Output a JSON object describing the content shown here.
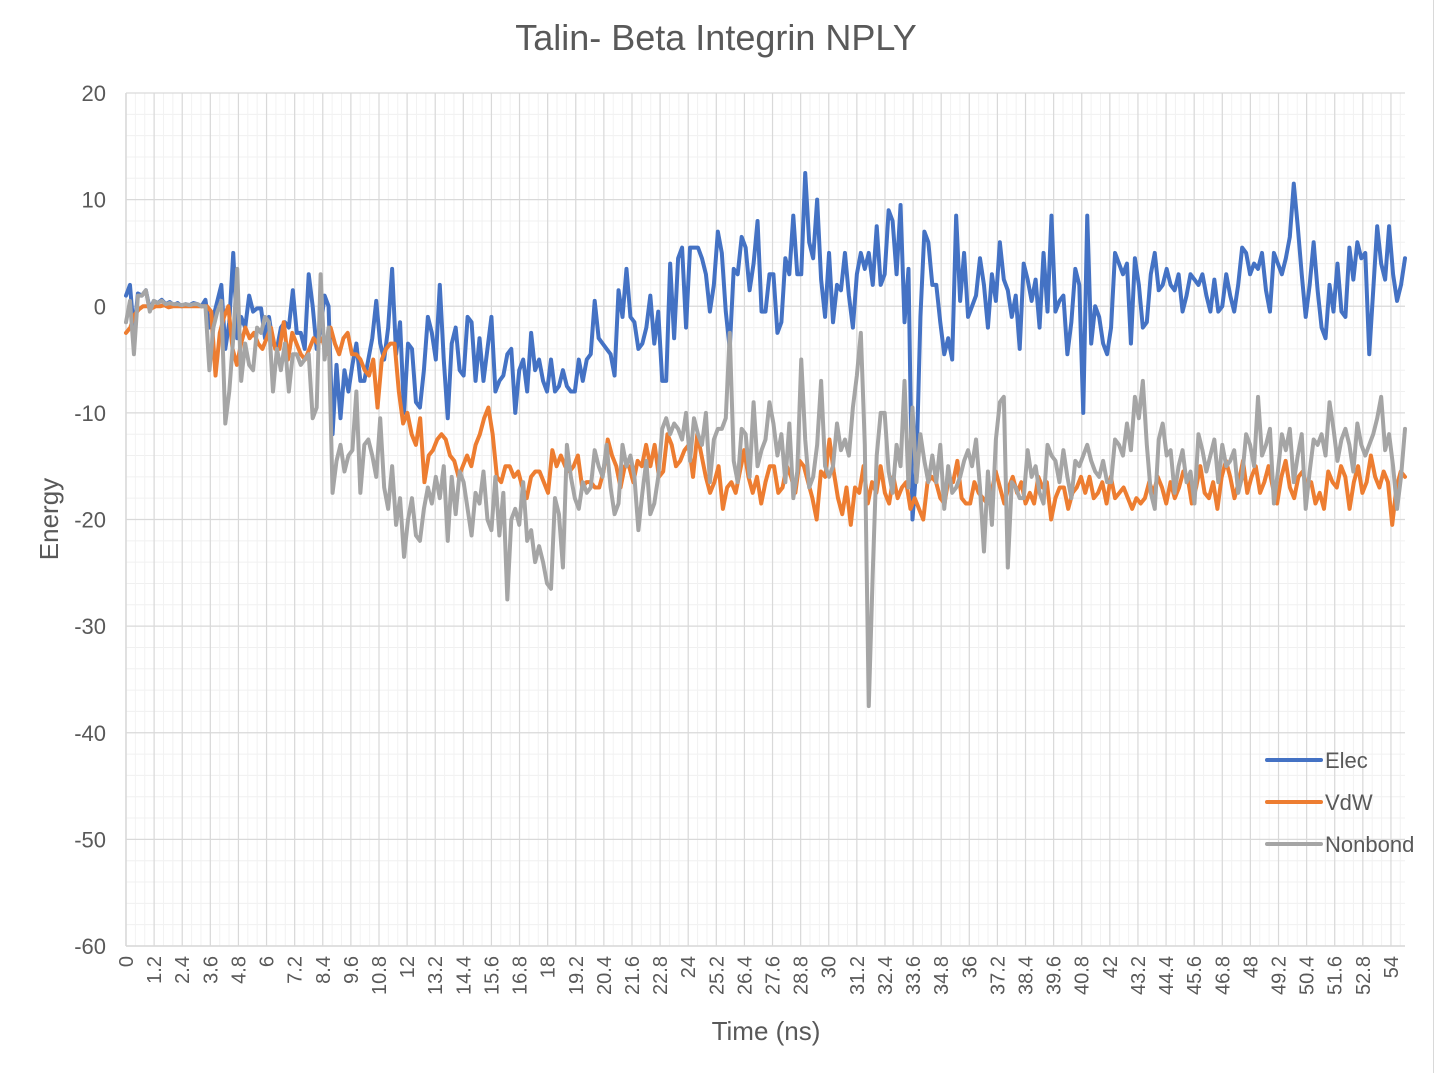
{
  "chart_data": {
    "type": "line",
    "title": "Talin- Beta Integrin NPLY",
    "xlabel": "Time (ns)",
    "ylabel": "Energy",
    "ylim": [
      -60,
      20
    ],
    "yticks": [
      20,
      10,
      0,
      -10,
      -20,
      -30,
      -40,
      -50,
      -60
    ],
    "xlim": [
      0,
      54.6
    ],
    "xticks": [
      "0",
      "1.2",
      "2.4",
      "3.6",
      "4.8",
      "6",
      "7.2",
      "8.4",
      "9.6",
      "10.8",
      "12",
      "13.2",
      "14.4",
      "15.6",
      "16.8",
      "18",
      "19.2",
      "20.4",
      "21.6",
      "22.8",
      "24",
      "25.2",
      "26.4",
      "27.6",
      "28.8",
      "30",
      "31.2",
      "32.4",
      "33.6",
      "34.8",
      "36",
      "37.2",
      "38.4",
      "39.6",
      "40.8",
      "42",
      "43.2",
      "44.4",
      "45.6",
      "46.8",
      "48",
      "49.2",
      "50.4",
      "51.6",
      "52.8",
      "54"
    ],
    "grid": true,
    "legend_position": "bottom-right",
    "series": [
      {
        "name": "Elec",
        "color": "#4472c4",
        "values": [
          1.0,
          2.0,
          -2.5,
          1.2,
          1.0,
          1.5,
          -0.3,
          0.5,
          0.3,
          0.6,
          0.2,
          0.4,
          0.1,
          0.3,
          0.0,
          0.2,
          0.1,
          0.3,
          0.2,
          0.0,
          0.6,
          -2.0,
          -1.0,
          0.5,
          2.0,
          -4.0,
          -1.5,
          5.0,
          -3.0,
          -1.0,
          -2.0,
          1.0,
          -0.5,
          -0.2,
          -0.2,
          -3.0,
          -1.0,
          -3.5,
          -4.0,
          -2.0,
          -1.5,
          -2.0,
          1.5,
          -2.5,
          -2.5,
          -4.0,
          3.0,
          0.0,
          -4.0,
          -2.0,
          1.0,
          0.0,
          -12.0,
          -5.5,
          -10.5,
          -6.0,
          -8.0,
          -5.5,
          -3.5,
          -7.0,
          -7.0,
          -5.0,
          -3.0,
          0.5,
          -3.5,
          -5.0,
          -2.0,
          3.5,
          -4.5,
          -1.5,
          -10.0,
          -3.5,
          -4.0,
          -9.0,
          -9.5,
          -6.0,
          -1.0,
          -2.5,
          -5.0,
          2.0,
          -5.0,
          -10.5,
          -3.5,
          -2.0,
          -6.0,
          -6.5,
          -1.0,
          -1.5,
          -7.0,
          -3.0,
          -7.0,
          -4.0,
          -1.0,
          -8.0,
          -7.0,
          -6.5,
          -4.5,
          -4.0,
          -10.0,
          -6.0,
          -5.0,
          -8.0,
          -2.5,
          -6.0,
          -5.0,
          -7.0,
          -8.0,
          -5.0,
          -8.0,
          -7.5,
          -6.0,
          -7.5,
          -8.0,
          -8.0,
          -5.0,
          -7.0,
          -5.0,
          -4.5,
          0.5,
          -3.0,
          -3.5,
          -4.0,
          -4.5,
          -6.5,
          1.5,
          -1.0,
          3.5,
          -1.0,
          -1.5,
          -4.0,
          -3.5,
          -2.0,
          1.0,
          -3.5,
          -0.5,
          -7.0,
          -7.0,
          4.0,
          -3.0,
          4.5,
          5.5,
          -2.0,
          5.5,
          5.5,
          5.5,
          4.5,
          3.0,
          -0.5,
          2.0,
          7.0,
          5.0,
          -0.5,
          -4.0,
          3.5,
          3.0,
          6.5,
          5.5,
          1.5,
          4.0,
          8.0,
          -0.5,
          -0.5,
          3.0,
          3.0,
          -2.5,
          -1.5,
          4.5,
          3.0,
          8.5,
          3.0,
          3.0,
          12.5,
          6.0,
          4.5,
          10.0,
          2.5,
          -1.0,
          5.0,
          -1.5,
          2.0,
          1.5,
          5.0,
          1.0,
          -2.0,
          3.0,
          5.0,
          3.5,
          5.0,
          2.0,
          7.5,
          2.0,
          3.0,
          9.0,
          8.0,
          3.0,
          9.5,
          -1.5,
          3.5,
          -20.0,
          -15.0,
          -1.0,
          7.0,
          6.0,
          2.0,
          2.0,
          -1.5,
          -4.5,
          -3.0,
          -5.0,
          8.5,
          0.5,
          5.0,
          -1.0,
          0.0,
          1.0,
          4.5,
          2.0,
          -2.0,
          3.0,
          0.5,
          6.0,
          2.5,
          1.5,
          -1.0,
          1.0,
          -4.0,
          4.0,
          2.5,
          0.5,
          2.5,
          -2.0,
          5.0,
          -0.5,
          8.5,
          -0.5,
          0.5,
          1.0,
          -4.5,
          -1.5,
          3.5,
          2.0,
          -10.0,
          8.5,
          -3.5,
          0.0,
          -1.0,
          -3.5,
          -4.5,
          -2.0,
          5.0,
          4.0,
          3.0,
          4.0,
          -3.5,
          4.5,
          2.0,
          -2.0,
          -1.5,
          3.0,
          5.0,
          1.5,
          2.0,
          3.5,
          2.0,
          1.5,
          3.0,
          -0.5,
          1.0,
          3.0,
          2.5,
          2.0,
          3.0,
          1.0,
          -0.5,
          2.5,
          -0.5,
          0.0,
          3.0,
          1.0,
          -0.5,
          2.0,
          5.5,
          5.0,
          3.0,
          4.0,
          3.5,
          5.0,
          1.5,
          -0.5,
          5.0,
          4.0,
          3.0,
          4.5,
          6.5,
          11.5,
          7.5,
          3.0,
          -1.0,
          2.0,
          6.0,
          1.5,
          -2.0,
          -3.0,
          2.0,
          -0.5,
          4.0,
          -0.5,
          -1.0,
          5.5,
          2.5,
          6.0,
          4.5,
          5.0,
          -4.5,
          1.5,
          7.5,
          4.0,
          2.5,
          7.5,
          3.0,
          0.5,
          2.0,
          4.5
        ],
        "values_note": ""
      },
      {
        "name": "VdW",
        "color": "#ed7d31",
        "values": [
          -2.5,
          -2.0,
          -0.8,
          -0.3,
          0.0,
          0.0,
          -0.2,
          0.0,
          0.0,
          0.1,
          -0.1,
          0.0,
          0.0,
          0.0,
          0.0,
          0.0,
          0.0,
          0.0,
          0.0,
          0.0,
          -0.5,
          -6.5,
          -2.5,
          -1.0,
          0.0,
          -4.0,
          -5.5,
          -3.5,
          -2.0,
          -3.0,
          -2.5,
          -3.5,
          -4.0,
          -3.0,
          -2.0,
          -4.0,
          -4.0,
          -1.5,
          -5.0,
          -2.5,
          -3.5,
          -4.5,
          -5.0,
          -4.0,
          -3.0,
          -3.5,
          -3.0,
          -4.5,
          -2.0,
          -3.5,
          -4.5,
          -3.0,
          -2.5,
          -4.5,
          -4.5,
          -5.0,
          -6.0,
          -6.5,
          -5.0,
          -9.5,
          -5.0,
          -4.0,
          -3.5,
          -3.5,
          -8.0,
          -11.0,
          -10.0,
          -12.0,
          -13.0,
          -10.5,
          -16.5,
          -14.0,
          -13.5,
          -12.5,
          -12.0,
          -12.5,
          -14.0,
          -14.5,
          -16.0,
          -15.0,
          -14.0,
          -15.0,
          -13.0,
          -12.0,
          -10.5,
          -9.5,
          -12.0,
          -16.0,
          -16.5,
          -15.0,
          -15.0,
          -16.0,
          -15.5,
          -17.0,
          -18.0,
          -16.0,
          -15.5,
          -15.5,
          -16.5,
          -17.5,
          -13.5,
          -15.0,
          -14.0,
          -15.0,
          -15.5,
          -15.0,
          -14.0,
          -17.0,
          -16.5,
          -16.5,
          -17.0,
          -17.0,
          -15.5,
          -12.5,
          -14.0,
          -15.0,
          -17.0,
          -15.0,
          -15.0,
          -16.5,
          -14.5,
          -15.0,
          -13.0,
          -15.0,
          -13.0,
          -16.0,
          -15.5,
          -12.0,
          -13.0,
          -15.0,
          -14.5,
          -13.5,
          -13.0,
          -16.0,
          -12.0,
          -14.0,
          -16.0,
          -17.5,
          -16.5,
          -15.0,
          -19.0,
          -17.0,
          -16.5,
          -17.5,
          -15.5,
          -13.5,
          -16.0,
          -17.5,
          -16.0,
          -18.5,
          -16.5,
          -15.0,
          -15.0,
          -17.5,
          -17.0,
          -15.0,
          -16.0,
          -17.5,
          -14.5,
          -15.0,
          -16.5,
          -18.0,
          -20.0,
          -15.5,
          -16.0,
          -12.5,
          -15.5,
          -18.0,
          -19.5,
          -17.0,
          -20.5,
          -17.0,
          -17.5,
          -15.0,
          -18.5,
          -16.5,
          -17.5,
          -15.0,
          -17.5,
          -18.5,
          -16.0,
          -18.0,
          -17.0,
          -16.5,
          -19.0,
          -18.0,
          -19.0,
          -20.0,
          -16.5,
          -16.0,
          -16.5,
          -18.0,
          -18.5,
          -16.0,
          -16.5,
          -14.5,
          -18.0,
          -18.5,
          -18.5,
          -16.5,
          -17.5,
          -18.0,
          -18.5,
          -17.5,
          -15.5,
          -17.0,
          -18.5,
          -17.0,
          -16.0,
          -17.5,
          -16.5,
          -18.5,
          -17.5,
          -18.5,
          -16.0,
          -17.0,
          -16.5,
          -20.0,
          -18.0,
          -17.0,
          -17.0,
          -19.0,
          -17.5,
          -17.0,
          -16.0,
          -17.5,
          -16.0,
          -18.0,
          -17.5,
          -16.5,
          -18.5,
          -16.0,
          -18.0,
          -17.5,
          -17.0,
          -18.0,
          -19.0,
          -18.0,
          -18.5,
          -18.0,
          -16.5,
          -17.5,
          -16.0,
          -17.0,
          -18.5,
          -16.5,
          -18.0,
          -17.0,
          -15.5,
          -16.0,
          -18.5,
          -17.0,
          -15.0,
          -17.5,
          -18.0,
          -16.5,
          -19.0,
          -16.0,
          -14.5,
          -16.0,
          -18.0,
          -16.5,
          -14.5,
          -17.5,
          -16.0,
          -15.0,
          -17.5,
          -16.5,
          -15.0,
          -17.0,
          -18.5,
          -16.0,
          -14.5,
          -17.0,
          -18.0,
          -16.0,
          -15.5,
          -17.0,
          -16.5,
          -18.5,
          -17.5,
          -19.0,
          -15.5,
          -16.5,
          -17.0,
          -15.0,
          -16.0,
          -19.0,
          -16.5,
          -15.0,
          -17.5,
          -16.5,
          -14.0,
          -16.0,
          -17.0,
          -15.5,
          -16.5,
          -20.5,
          -17.0,
          -15.5,
          -16.0
        ],
        "values_note": ""
      },
      {
        "name": "Nonbond",
        "color": "#a5a5a5",
        "values": [
          -1.5,
          0.5,
          -4.5,
          1.0,
          1.0,
          1.5,
          -0.5,
          0.5,
          0.3,
          0.5,
          0.2,
          0.3,
          0.2,
          0.2,
          0.1,
          0.2,
          0.1,
          0.2,
          0.2,
          0.0,
          0.0,
          -6.0,
          -2.0,
          -0.5,
          0.5,
          -11.0,
          -8.0,
          -3.0,
          3.5,
          -7.0,
          -3.5,
          -5.5,
          -6.0,
          -2.0,
          -2.5,
          -1.0,
          -1.5,
          -8.0,
          -4.0,
          -6.0,
          -3.5,
          -8.0,
          -4.5,
          -4.5,
          -5.5,
          -5.0,
          -4.5,
          -10.5,
          -9.5,
          3.0,
          -5.0,
          -2.0,
          -17.5,
          -14.5,
          -13.0,
          -15.5,
          -14.0,
          -13.5,
          -8.0,
          -17.5,
          -13.0,
          -12.5,
          -14.0,
          -16.0,
          -10.5,
          -17.0,
          -19.0,
          -15.0,
          -20.5,
          -18.0,
          -23.5,
          -20.0,
          -18.0,
          -21.5,
          -22.0,
          -19.0,
          -17.0,
          -18.5,
          -16.0,
          -18.0,
          -15.0,
          -22.0,
          -16.0,
          -19.5,
          -15.5,
          -16.5,
          -19.0,
          -21.5,
          -17.5,
          -18.5,
          -15.5,
          -20.0,
          -21.0,
          -16.0,
          -21.5,
          -17.5,
          -27.5,
          -20.0,
          -19.0,
          -20.5,
          -16.5,
          -22.0,
          -21.0,
          -24.0,
          -22.5,
          -24.0,
          -26.0,
          -26.5,
          -18.0,
          -19.5,
          -24.5,
          -13.0,
          -16.0,
          -18.0,
          -19.0,
          -16.5,
          -17.5,
          -17.0,
          -13.5,
          -15.0,
          -16.0,
          -13.0,
          -17.0,
          -19.5,
          -18.5,
          -13.0,
          -15.0,
          -14.0,
          -16.0,
          -21.0,
          -17.5,
          -14.5,
          -19.5,
          -18.5,
          -16.0,
          -11.5,
          -10.5,
          -12.0,
          -11.0,
          -11.5,
          -12.5,
          -10.0,
          -14.5,
          -10.5,
          -12.0,
          -13.0,
          -10.0,
          -16.5,
          -12.5,
          -11.5,
          -11.5,
          -10.5,
          -2.5,
          -14.5,
          -16.5,
          -11.5,
          -12.0,
          -16.0,
          -9.0,
          -15.0,
          -13.5,
          -12.5,
          -9.0,
          -11.0,
          -14.0,
          -12.0,
          -16.5,
          -11.0,
          -18.0,
          -15.5,
          -5.0,
          -12.5,
          -17.0,
          -16.0,
          -13.0,
          -7.0,
          -15.0,
          -16.0,
          -15.0,
          -11.0,
          -13.5,
          -12.5,
          -14.0,
          -9.5,
          -6.5,
          -2.5,
          -13.0,
          -37.5,
          -25.0,
          -14.0,
          -10.0,
          -10.0,
          -15.5,
          -17.5,
          -13.0,
          -15.0,
          -7.0,
          -17.0,
          -9.5,
          -16.5,
          -12.0,
          -14.5,
          -16.5,
          -14.0,
          -16.5,
          -13.0,
          -19.0,
          -15.0,
          -17.5,
          -17.0,
          -16.0,
          -14.5,
          -13.5,
          -15.0,
          -12.5,
          -17.0,
          -23.0,
          -15.5,
          -20.5,
          -12.5,
          -9.0,
          -8.5,
          -24.5,
          -16.5,
          -17.0,
          -18.0,
          -18.0,
          -13.5,
          -16.0,
          -15.0,
          -17.5,
          -18.5,
          -13.0,
          -14.0,
          -14.5,
          -16.5,
          -13.5,
          -16.0,
          -18.0,
          -14.5,
          -15.0,
          -14.0,
          -13.0,
          -14.5,
          -15.5,
          -16.0,
          -14.5,
          -16.5,
          -16.5,
          -12.5,
          -13.0,
          -14.0,
          -11.0,
          -13.5,
          -8.5,
          -10.5,
          -7.0,
          -13.0,
          -17.5,
          -19.0,
          -12.5,
          -11.0,
          -14.0,
          -13.5,
          -17.5,
          -15.0,
          -13.5,
          -16.5,
          -15.5,
          -18.5,
          -12.0,
          -13.5,
          -15.5,
          -14.0,
          -12.5,
          -16.5,
          -13.0,
          -15.0,
          -14.5,
          -13.5,
          -17.5,
          -16.0,
          -12.0,
          -13.0,
          -15.0,
          -8.5,
          -14.0,
          -13.0,
          -11.5,
          -18.5,
          -15.5,
          -12.0,
          -13.5,
          -11.5,
          -16.5,
          -14.0,
          -12.0,
          -19.0,
          -15.5,
          -12.5,
          -13.0,
          -12.0,
          -14.0,
          -9.0,
          -11.5,
          -14.5,
          -12.5,
          -11.5,
          -13.0,
          -15.5,
          -11.0,
          -13.0,
          -14.0,
          -13.0,
          -12.0,
          -10.5,
          -8.5,
          -13.5,
          -12.0,
          -15.0,
          -19.0,
          -16.0,
          -11.5
        ],
        "values_note": ""
      }
    ]
  }
}
